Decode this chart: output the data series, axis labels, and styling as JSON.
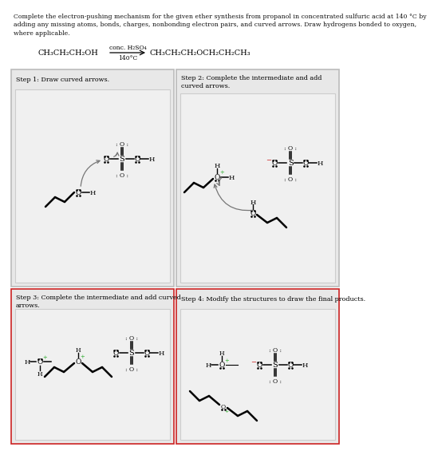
{
  "title_text": "Complete the electron-pushing mechanism for the given ether synthesis from propanol in concentrated sulfuric acid at 140 °C by\nadding any missing atoms, bonds, charges, nonbonding electron pairs, and curved arrows. Draw hydrogens bonded to oxygen,\nwhere applicable.",
  "reaction_line": "CH₃CH₂CH₂OH",
  "reaction_arrow_label_top": "conc. H₂SO₄",
  "reaction_arrow_label_bot": "140°C",
  "reaction_product": "CH₃CH₂CH₂OCH₂CH₂CH₃",
  "step1_title": "Step 1: Draw curved arrows.",
  "step2_title": "Step 2: Complete the intermediate and add\ncurved arrows.",
  "step3_title": "Step 3: Complete the intermediate and add curved\narrows.",
  "step4_title": "Step 4: Modify the structures to draw the final products.",
  "panel_bg": "#e8e8e8",
  "box_bg": "#f5f5f5",
  "border_gray": "#bbbbbb",
  "border_red": "#cc2222",
  "text_color": "#111111",
  "arrow_color": "#777777",
  "dot_color": "#111111"
}
